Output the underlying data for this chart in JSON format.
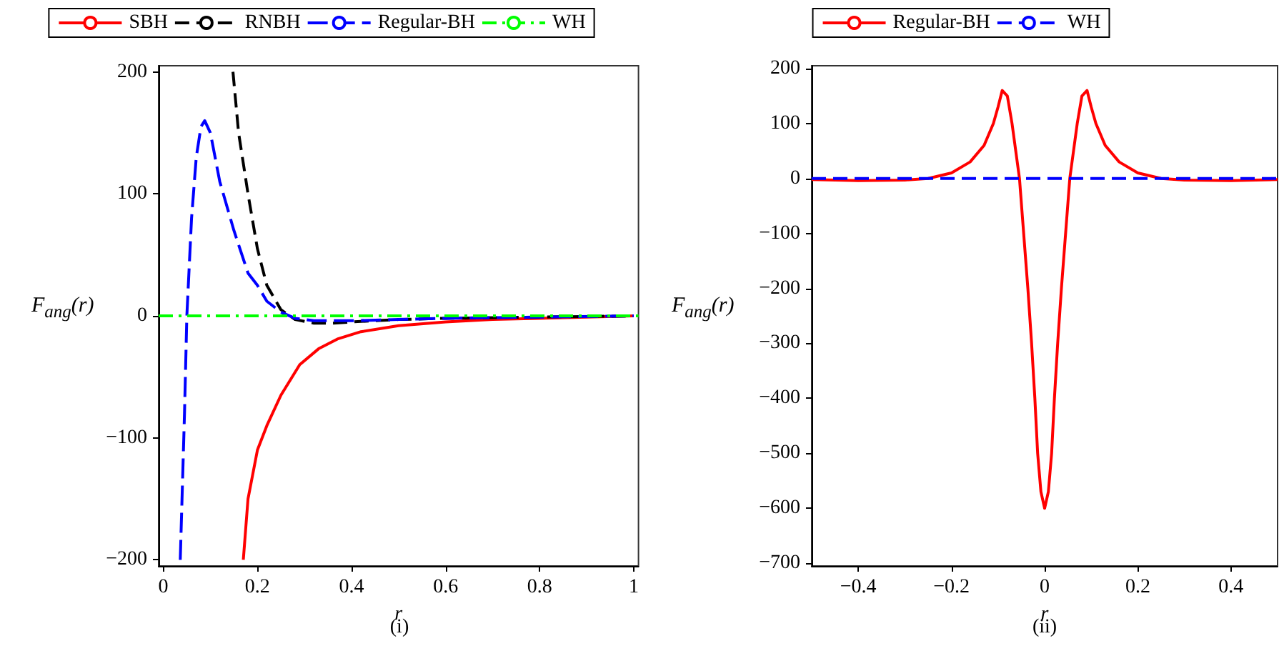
{
  "chart_data": [
    {
      "type": "line",
      "xlabel": "r",
      "ylabel": "F$_{ang}$(r)",
      "annotations": [
        "(i)"
      ],
      "legend": "top",
      "grid": false,
      "xlim": [
        -0.01,
        1.01
      ],
      "xticks": [
        0,
        0.2,
        0.4,
        0.6,
        0.8,
        1
      ],
      "ylim": [
        -205,
        205
      ],
      "yticks": [
        -200,
        -100,
        0,
        100,
        200
      ],
      "series": [
        {
          "name": "SBH",
          "color": "#ff0000",
          "line_style": "solid",
          "x": [
            0.17,
            0.18,
            0.2,
            0.22,
            0.25,
            0.29,
            0.33,
            0.37,
            0.42,
            0.5,
            0.6,
            0.7,
            0.8,
            0.9,
            1.0
          ],
          "values": [
            -200,
            -150,
            -110,
            -90,
            -65,
            -40,
            -27,
            -19,
            -13,
            -8,
            -5,
            -3,
            -2,
            -1,
            0
          ]
        },
        {
          "name": "RNBH",
          "color": "#000000",
          "line_style": "dashed",
          "x": [
            0.148,
            0.16,
            0.18,
            0.2,
            0.22,
            0.25,
            0.28,
            0.32,
            0.36,
            0.4,
            0.5,
            0.6,
            0.8,
            1.0
          ],
          "values": [
            200,
            150,
            100,
            55,
            25,
            5,
            -3,
            -6,
            -6,
            -5,
            -3,
            -2,
            -1,
            0
          ]
        },
        {
          "name": "Regular-BH",
          "color": "#0000ff",
          "line_style": "longdash",
          "x": [
            0.036,
            0.045,
            0.05,
            0.06,
            0.07,
            0.08,
            0.088,
            0.1,
            0.12,
            0.15,
            0.18,
            0.2,
            0.22,
            0.25,
            0.28,
            0.32,
            0.4,
            0.5,
            0.6,
            0.8,
            1.0
          ],
          "values": [
            -200,
            -80,
            0,
            80,
            130,
            155,
            160,
            150,
            110,
            70,
            35,
            25,
            12,
            3,
            -2,
            -4,
            -4,
            -3,
            -2,
            -1,
            0
          ]
        },
        {
          "name": "WH",
          "color": "#00ff00",
          "line_style": "dashdot",
          "x": [
            -0.01,
            1.01
          ],
          "values": [
            0,
            0
          ]
        }
      ]
    },
    {
      "type": "line",
      "xlabel": "r",
      "ylabel": "F$_{ang}$(r)",
      "annotations": [
        "(ii)"
      ],
      "legend": "top",
      "grid": false,
      "xlim": [
        -0.5,
        0.5
      ],
      "xticks": [
        -0.4,
        -0.2,
        0,
        0.2,
        0.4
      ],
      "ylim": [
        -705,
        205
      ],
      "yticks": [
        -700,
        -600,
        -500,
        -400,
        -300,
        -200,
        -100,
        0,
        100,
        200
      ],
      "series": [
        {
          "name": "Regular-BH",
          "color": "#ff0000",
          "line_style": "solid",
          "x": [
            -0.5,
            -0.4,
            -0.3,
            -0.25,
            -0.2,
            -0.16,
            -0.13,
            -0.11,
            -0.1,
            -0.091,
            -0.08,
            -0.07,
            -0.054,
            -0.036,
            -0.028,
            -0.021,
            -0.015,
            -0.008,
            0,
            0.008,
            0.015,
            0.021,
            0.028,
            0.036,
            0.054,
            0.07,
            0.08,
            0.091,
            0.1,
            0.11,
            0.13,
            0.16,
            0.2,
            0.25,
            0.3,
            0.4,
            0.5
          ],
          "values": [
            -2,
            -4,
            -3,
            0,
            10,
            30,
            60,
            100,
            130,
            160,
            150,
            100,
            0,
            -200,
            -300,
            -400,
            -500,
            -570,
            -600,
            -570,
            -500,
            -400,
            -300,
            -200,
            0,
            100,
            150,
            160,
            130,
            100,
            60,
            30,
            10,
            0,
            -3,
            -4,
            -2
          ]
        },
        {
          "name": "WH",
          "color": "#0000ff",
          "line_style": "dashed",
          "x": [
            -0.5,
            0.5
          ],
          "values": [
            0,
            0
          ]
        }
      ]
    }
  ]
}
